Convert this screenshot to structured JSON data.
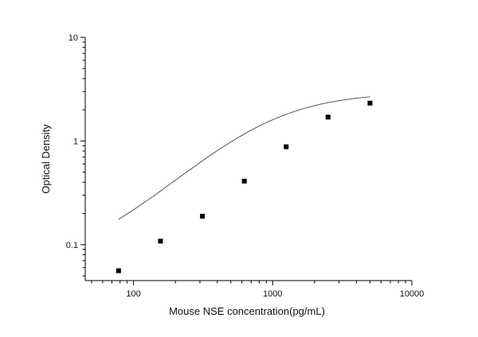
{
  "chart_data": {
    "type": "scatter",
    "title": "",
    "xlabel": "Mouse NSE concentration(pg/mL)",
    "ylabel": "Optical Density",
    "xscale": "log",
    "yscale": "log",
    "xlim": [
      45,
      10000
    ],
    "ylim": [
      0.045,
      10
    ],
    "x_ticks": [
      {
        "value": 100,
        "label": "100"
      },
      {
        "value": 1000,
        "label": "1000"
      },
      {
        "value": 10000,
        "label": "10000"
      }
    ],
    "y_ticks": [
      {
        "value": 0.1,
        "label": "0.1"
      },
      {
        "value": 1,
        "label": "1"
      },
      {
        "value": 10,
        "label": "10"
      }
    ],
    "grid": false,
    "legend": "none",
    "colors": {
      "points": "#000000",
      "curve": "#444444",
      "axes": "#000000"
    },
    "series": [
      {
        "marker": "square",
        "x": [
          78.125,
          156.25,
          312.5,
          625,
          1250,
          2500,
          5000
        ],
        "y": [
          0.056,
          0.108,
          0.188,
          0.41,
          0.88,
          1.7,
          2.32
        ]
      }
    ],
    "fit": {
      "type": "four-parameter logistic",
      "A": 0.06,
      "D": 2.95,
      "C": 900,
      "B": 1.3
    }
  }
}
